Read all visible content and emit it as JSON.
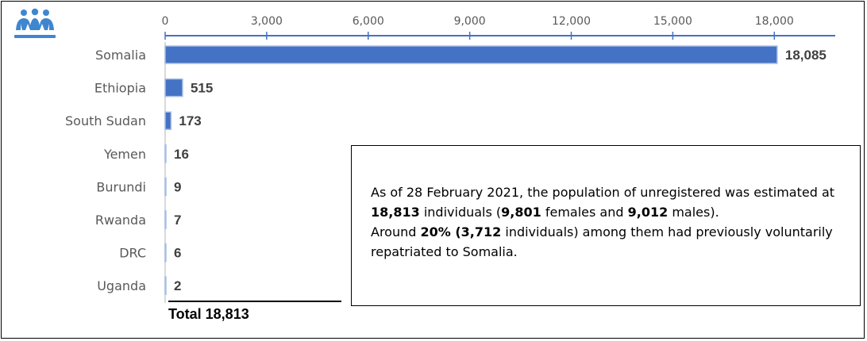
{
  "chart_data": {
    "type": "bar",
    "orientation": "horizontal",
    "categories": [
      "Somalia",
      "Ethiopia",
      "South Sudan",
      "Yemen",
      "Burundi",
      "Rwanda",
      "DRC",
      "Uganda"
    ],
    "values": [
      18085,
      515,
      173,
      16,
      9,
      7,
      6,
      2
    ],
    "value_labels": [
      "18,085",
      "515",
      "173",
      "16",
      "9",
      "7",
      "6",
      "2"
    ],
    "x_ticks": [
      0,
      3000,
      6000,
      9000,
      12000,
      15000,
      18000
    ],
    "x_tick_labels": [
      "0",
      "3,000",
      "6,000",
      "9,000",
      "12,000",
      "15,000",
      "18,000"
    ],
    "xlim": [
      0,
      19800
    ],
    "axis_position": "top",
    "grid": false,
    "colors": {
      "bar": "#4472c4",
      "bar_edge": "#a9c0e8",
      "axis": "#4472c4",
      "label": "#595959",
      "value": "#404040"
    }
  },
  "logo": {
    "name": "people-group-icon",
    "color": "#3f86d0"
  },
  "note": {
    "p1_a": "As of 28 February 2021, the population of unregistered was estimated at ",
    "p1_b": "18,813",
    "p1_c": " individuals (",
    "p1_d": "9,801",
    "p1_e": " females and ",
    "p1_f": "9,012",
    "p1_g": " males).",
    "p2_a": "Around ",
    "p2_b": "20% (3,712",
    "p2_c": " individuals) among them had previously voluntarily repatriated to Somalia."
  },
  "total_label": "Total 18,813"
}
